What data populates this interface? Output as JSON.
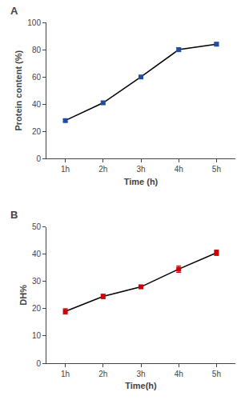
{
  "chart_data": [
    {
      "type": "line",
      "xlabel": "Time (h)",
      "ylabel": "Protein content (%)",
      "annotations": [
        {
          "text": "A"
        }
      ],
      "x": [
        1,
        2,
        3,
        4,
        5
      ],
      "series": [
        {
          "type": "line",
          "color": "black",
          "values": [
            28,
            41,
            60,
            80,
            84
          ]
        },
        {
          "type": "scatter",
          "color": "#1f4e9e",
          "marker": "square",
          "values": [
            28,
            41,
            60,
            80,
            84
          ],
          "yerr": [
            1.0,
            1.2,
            1.0,
            1.5,
            1.2
          ]
        }
      ],
      "xlim": [
        0.5,
        5.5
      ],
      "xticks": [
        {
          "value": 1,
          "label": "1h"
        },
        {
          "value": 2,
          "label": "2h"
        },
        {
          "value": 3,
          "label": "3h"
        },
        {
          "value": 4,
          "label": "4h"
        },
        {
          "value": 5,
          "label": "5h"
        }
      ],
      "ylim": [
        0,
        100
      ],
      "yticks": [
        0,
        20,
        40,
        60,
        80,
        100
      ],
      "grid": false
    },
    {
      "type": "line",
      "xlabel": "Time(h)",
      "ylabel": "DH%",
      "annotations": [
        {
          "text": "B"
        }
      ],
      "x": [
        1,
        2,
        3,
        4,
        5
      ],
      "series": [
        {
          "type": "line",
          "color": "black",
          "values": [
            19,
            24.5,
            28,
            34.5,
            40.5
          ]
        },
        {
          "type": "scatter",
          "color": "#cc0000",
          "marker": "square",
          "values": [
            19,
            24.5,
            28,
            34.5,
            40.5
          ],
          "yerr": [
            1.0,
            0.8,
            0.6,
            1.2,
            1.0
          ]
        }
      ],
      "xlim": [
        0.5,
        5.5
      ],
      "xticks": [
        {
          "value": 1,
          "label": "1h"
        },
        {
          "value": 2,
          "label": "2h"
        },
        {
          "value": 3,
          "label": "3h"
        },
        {
          "value": 4,
          "label": "4h"
        },
        {
          "value": 5,
          "label": "5h"
        }
      ],
      "ylim": [
        0,
        50
      ],
      "yticks": [
        0,
        10,
        20,
        30,
        40,
        50
      ],
      "grid": false
    }
  ]
}
